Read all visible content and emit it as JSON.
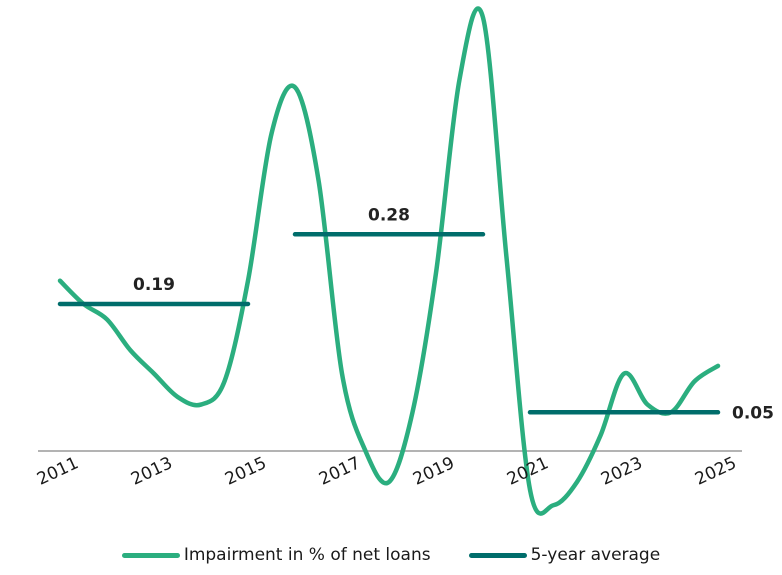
{
  "chart_data": {
    "type": "line",
    "x": [
      2011,
      2011.5,
      2012,
      2012.5,
      2013,
      2013.5,
      2014,
      2014.5,
      2015,
      2015.5,
      2016,
      2016.5,
      2017,
      2017.5,
      2018,
      2018.5,
      2019,
      2019.5,
      2020,
      2020.5,
      2021,
      2021.5,
      2022,
      2022.5,
      2023,
      2023.5,
      2024,
      2024.5,
      2025
    ],
    "x_tick_labels": [
      "2011",
      "2013",
      "2015",
      "2017",
      "2019",
      "2021",
      "2023",
      "2025"
    ],
    "x_tick_values": [
      2011,
      2013,
      2015,
      2017,
      2019,
      2021,
      2023,
      2025
    ],
    "series": [
      {
        "name": "Impairment in % of net loans",
        "color": "#2BAE7F",
        "values": [
          0.22,
          0.19,
          0.17,
          0.13,
          0.1,
          0.07,
          0.06,
          0.09,
          0.22,
          0.41,
          0.47,
          0.35,
          0.1,
          0.0,
          -0.04,
          0.05,
          0.23,
          0.48,
          0.56,
          0.25,
          -0.05,
          -0.07,
          -0.04,
          0.02,
          0.1,
          0.06,
          0.05,
          0.09,
          0.11
        ]
      },
      {
        "name": "5-year average",
        "color": "#006D6B",
        "segments": [
          {
            "x": [
              2011,
              2015
            ],
            "value": 0.19,
            "label": "0.19"
          },
          {
            "x": [
              2016,
              2020
            ],
            "value": 0.28,
            "label": "0.28"
          },
          {
            "x": [
              2021,
              2025
            ],
            "value": 0.05,
            "label": "0.05"
          }
        ]
      }
    ],
    "ylim": [
      -0.08,
      0.57
    ],
    "baseline": 0,
    "grid": false,
    "legend_position": "bottom"
  },
  "legend": {
    "impairment": "Impairment in % of net loans",
    "average": "5-year average"
  }
}
